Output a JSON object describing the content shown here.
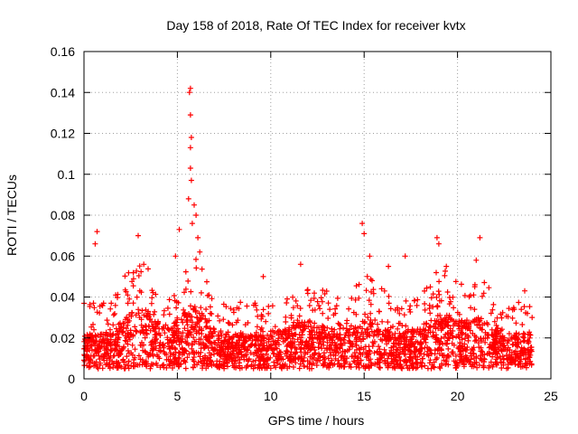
{
  "chart_data": {
    "type": "scatter",
    "title": "Day 158 of 2018, Rate Of TEC Index for receiver kvtx",
    "xlabel": "GPS time / hours",
    "ylabel": "ROTI / TECUs",
    "xlim": [
      0,
      25
    ],
    "ylim": [
      0,
      0.16
    ],
    "x_ticks": [
      0,
      5,
      10,
      15,
      20,
      25
    ],
    "y_ticks": [
      0,
      0.02,
      0.04,
      0.06,
      0.08,
      0.1,
      0.12,
      0.14,
      0.16
    ],
    "x_tick_labels": [
      "0",
      "5",
      "10",
      "15",
      "20",
      "25"
    ],
    "y_tick_labels": [
      "0",
      "0.02",
      "0.04",
      "0.06",
      "0.08",
      "0.1",
      "0.12",
      "0.14",
      "0.16"
    ],
    "grid": true,
    "marker": "+",
    "color": "#ff0000",
    "series": [
      {
        "name": "ROTI",
        "description": "Dense band of points mostly between 0.005 and 0.03 TECU/min over 0–24 h, with isolated spikes",
        "peaks": [
          {
            "x": 0.7,
            "y": 0.072
          },
          {
            "x": 0.6,
            "y": 0.066
          },
          {
            "x": 2.9,
            "y": 0.07
          },
          {
            "x": 3.2,
            "y": 0.056
          },
          {
            "x": 4.9,
            "y": 0.06
          },
          {
            "x": 5.1,
            "y": 0.073
          },
          {
            "x": 5.7,
            "y": 0.142
          },
          {
            "x": 5.65,
            "y": 0.14
          },
          {
            "x": 5.7,
            "y": 0.129
          },
          {
            "x": 5.75,
            "y": 0.118
          },
          {
            "x": 5.7,
            "y": 0.113
          },
          {
            "x": 5.7,
            "y": 0.103
          },
          {
            "x": 5.75,
            "y": 0.097
          },
          {
            "x": 5.6,
            "y": 0.088
          },
          {
            "x": 5.9,
            "y": 0.085
          },
          {
            "x": 6.0,
            "y": 0.08
          },
          {
            "x": 5.8,
            "y": 0.076
          },
          {
            "x": 6.1,
            "y": 0.069
          },
          {
            "x": 6.2,
            "y": 0.062
          },
          {
            "x": 9.6,
            "y": 0.05
          },
          {
            "x": 11.6,
            "y": 0.056
          },
          {
            "x": 14.9,
            "y": 0.076
          },
          {
            "x": 15.0,
            "y": 0.071
          },
          {
            "x": 15.3,
            "y": 0.06
          },
          {
            "x": 16.3,
            "y": 0.055
          },
          {
            "x": 17.2,
            "y": 0.06
          },
          {
            "x": 18.9,
            "y": 0.069
          },
          {
            "x": 19.0,
            "y": 0.066
          },
          {
            "x": 19.4,
            "y": 0.055
          },
          {
            "x": 21.2,
            "y": 0.069
          },
          {
            "x": 21.0,
            "y": 0.058
          },
          {
            "x": 23.6,
            "y": 0.043
          }
        ]
      }
    ]
  }
}
